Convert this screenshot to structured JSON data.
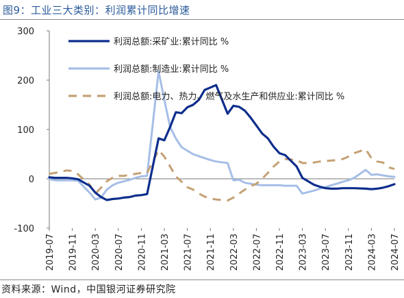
{
  "header": {
    "title": "图9：工业三大类别：利润累计同比增速"
  },
  "footer": {
    "source": "资料来源：Wind，中国银河证券研究院"
  },
  "colors": {
    "mining": "#0d2d8c",
    "manufacturing": "#a6bee6",
    "utilities": "#c4a074"
  },
  "chart_data": {
    "type": "line",
    "ylim": [
      -100,
      300
    ],
    "yticks": [
      -100,
      0,
      100,
      200,
      300
    ],
    "xticks": [
      "2019-07",
      "2019-11",
      "2020-03",
      "2020-07",
      "2020-11",
      "2021-03",
      "2021-07",
      "2021-11",
      "2022-03",
      "2022-07",
      "2022-11",
      "2023-03",
      "2023-07",
      "2023-11",
      "2024-03",
      "2024-07"
    ],
    "x": [
      "2019-07",
      "2019-08",
      "2019-09",
      "2019-10",
      "2019-11",
      "2019-12",
      "2020-01",
      "2020-02",
      "2020-03",
      "2020-04",
      "2020-05",
      "2020-06",
      "2020-07",
      "2020-08",
      "2020-09",
      "2020-10",
      "2020-11",
      "2020-12",
      "2021-01",
      "2021-02",
      "2021-03",
      "2021-04",
      "2021-05",
      "2021-06",
      "2021-07",
      "2021-08",
      "2021-09",
      "2021-10",
      "2021-11",
      "2021-12",
      "2022-01",
      "2022-02",
      "2022-03",
      "2022-04",
      "2022-05",
      "2022-06",
      "2022-07",
      "2022-08",
      "2022-09",
      "2022-10",
      "2022-11",
      "2022-12",
      "2023-01",
      "2023-02",
      "2023-03",
      "2023-04",
      "2023-05",
      "2023-06",
      "2023-07",
      "2023-08",
      "2023-09",
      "2023-10",
      "2023-11",
      "2023-12",
      "2024-01",
      "2024-02",
      "2024-03",
      "2024-04",
      "2024-05",
      "2024-06",
      "2024-07"
    ],
    "series": [
      {
        "name": "利润总额:采矿业:累计同比 %",
        "style": "solid",
        "color": "#0d2d8c",
        "values": [
          3,
          2,
          2,
          2,
          1,
          -1,
          null,
          -14,
          -28,
          -37,
          -43,
          -41,
          -40,
          -38,
          -37,
          -34,
          -33,
          -31,
          null,
          82,
          78,
          105,
          135,
          133,
          145,
          150,
          160,
          180,
          185,
          190,
          null,
          132,
          148,
          146,
          138,
          124,
          108,
          92,
          82,
          65,
          52,
          48,
          null,
          25,
          2,
          -5,
          -12,
          -16,
          -19,
          -20,
          -20,
          -19,
          -19,
          -19,
          null,
          -20,
          -21,
          -20,
          -18,
          -15,
          -11
        ]
      },
      {
        "name": "利润总额:制造业:累计同比 %",
        "style": "solid",
        "color": "#a6bee6",
        "values": [
          -1,
          -3,
          -3,
          -3,
          -3,
          -4,
          null,
          -28,
          -42,
          -38,
          -22,
          -13,
          -8,
          -5,
          -2,
          2,
          5,
          6,
          null,
          218,
          160,
          105,
          82,
          64,
          57,
          50,
          46,
          42,
          38,
          35,
          null,
          32,
          -3,
          -2,
          -8,
          -10,
          -12,
          -13,
          -13,
          -13,
          -13,
          -14,
          null,
          -14,
          -30,
          -27,
          -24,
          -20,
          -17,
          -13,
          -10,
          -6,
          -3,
          2,
          null,
          18,
          8,
          9,
          7,
          5,
          4
        ]
      },
      {
        "name": "利润总额:电力、热力、燃气及水生产和供应业:累计同比 %",
        "style": "dashed",
        "color": "#c4a074",
        "values": [
          10,
          12,
          14,
          17,
          16,
          9,
          null,
          -12,
          -30,
          -18,
          -5,
          2,
          6,
          6,
          8,
          10,
          12,
          12,
          null,
          58,
          45,
          25,
          5,
          -6,
          -17,
          -22,
          -30,
          -36,
          -40,
          -42,
          null,
          -44,
          -38,
          -30,
          -22,
          -15,
          -10,
          0,
          12,
          25,
          35,
          40,
          null,
          38,
          32,
          32,
          33,
          35,
          36,
          37,
          38,
          40,
          45,
          52,
          null,
          60,
          42,
          35,
          33,
          23,
          20
        ]
      }
    ]
  }
}
